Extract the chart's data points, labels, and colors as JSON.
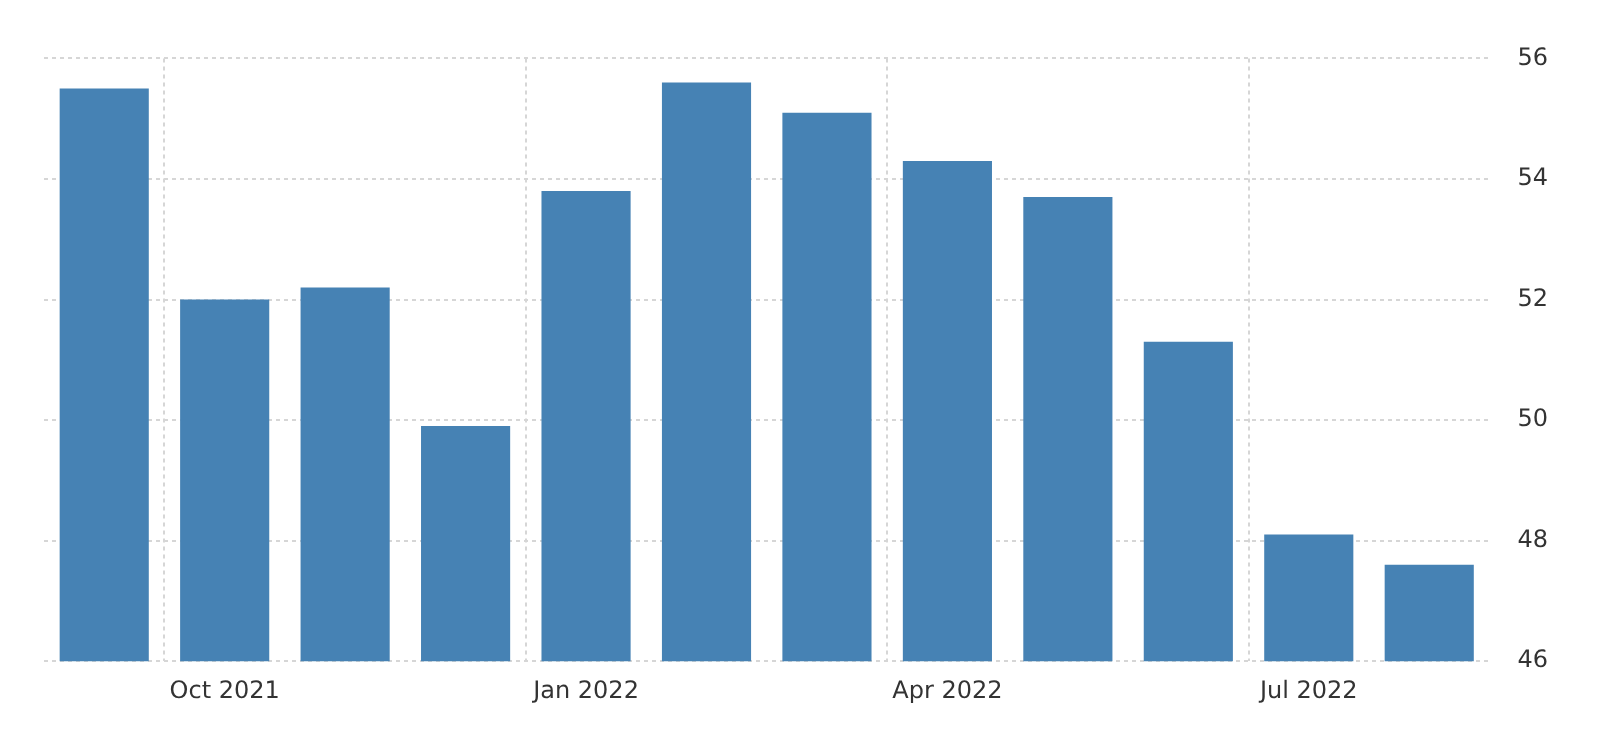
{
  "chart_data": {
    "type": "bar",
    "categories": [
      null,
      "Oct 2021",
      null,
      null,
      "Jan 2022",
      null,
      null,
      "Apr 2022",
      null,
      null,
      "Jul 2022",
      null
    ],
    "values": [
      55.5,
      52.0,
      52.2,
      49.9,
      53.8,
      55.6,
      55.1,
      54.3,
      53.7,
      51.3,
      48.1,
      47.6
    ],
    "color": "#4682b4",
    "ylim": [
      46,
      56
    ],
    "yticks": [
      46,
      48,
      50,
      52,
      54,
      56
    ],
    "grid": true,
    "legend": false
  }
}
